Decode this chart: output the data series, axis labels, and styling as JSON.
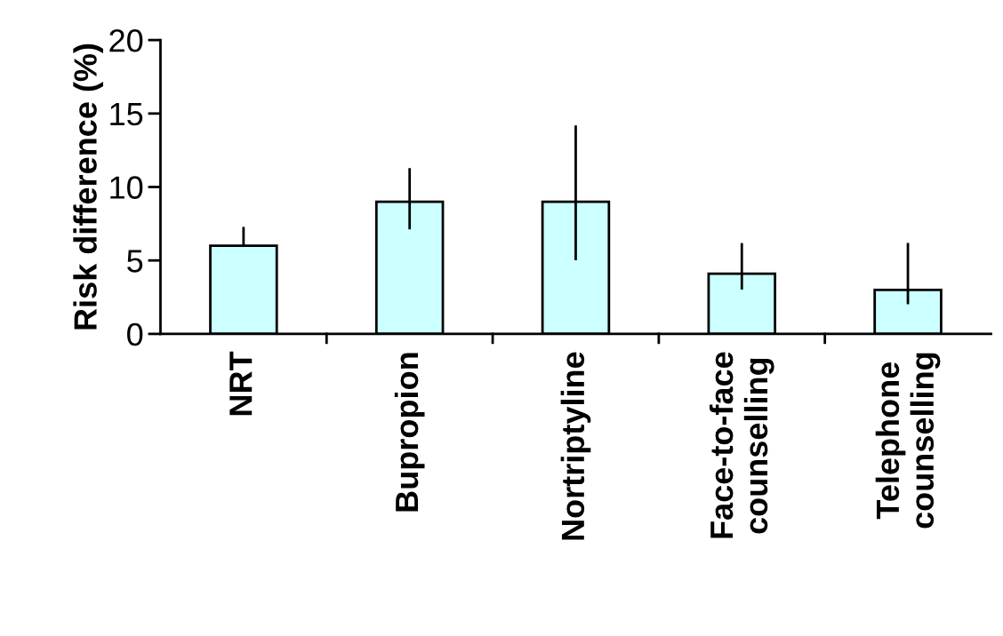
{
  "chart_data": {
    "type": "bar",
    "ylabel": "Risk difference (%)",
    "categories": [
      "NRT",
      "Bupropion",
      "Nortriptyline",
      "Face-to-face\ncounselling",
      "Telephone\ncounselling"
    ],
    "values": [
      6,
      9,
      9,
      4.1,
      3
    ],
    "errors": [
      [
        6,
        7.2
      ],
      [
        7.2,
        11.2
      ],
      [
        5.1,
        14.1
      ],
      [
        3.1,
        6.1
      ],
      [
        2.1,
        6.1
      ]
    ],
    "color": "#ccffff",
    "ylim": [
      0,
      20
    ],
    "yticks": [
      0,
      5,
      10,
      15,
      20
    ],
    "grid": false
  }
}
